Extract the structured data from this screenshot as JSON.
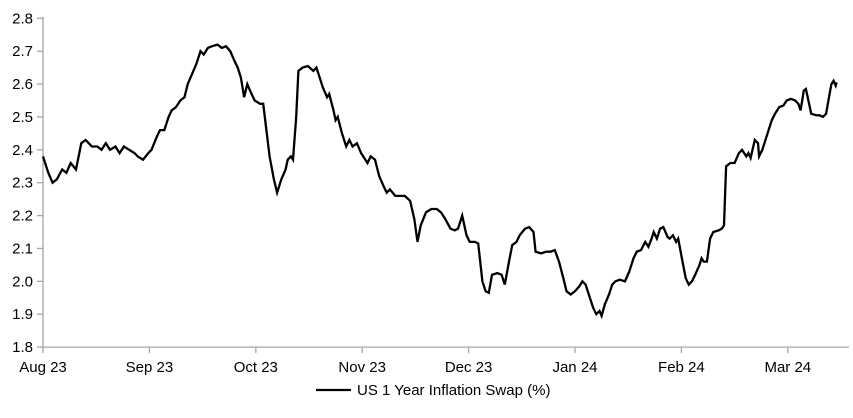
{
  "chart_data": {
    "type": "line",
    "title": "",
    "xlabel": "",
    "ylabel": "",
    "legend_label": "US 1 Year Inflation Swap (%)",
    "legend_position": "bottom-center",
    "grid": false,
    "ylim": [
      1.8,
      2.8
    ],
    "y_ticks": [
      2.8,
      2.7,
      2.6,
      2.5,
      2.4,
      2.3,
      2.2,
      2.1,
      2.0,
      1.9,
      1.8
    ],
    "y_tick_labels": [
      "2.8",
      "2.7",
      "2.6",
      "2.5",
      "2.4",
      "2.3",
      "2.2",
      "2.1",
      "2.0",
      "1.9",
      "1.8"
    ],
    "x_tick_labels": [
      "Aug 23",
      "Sep 23",
      "Oct 23",
      "Nov 23",
      "Dec 23",
      "Jan 24",
      "Feb 24",
      "Mar 24"
    ],
    "x_unit": "months after Aug 2023 tick (0 = Aug 23, 7 = Mar 24)",
    "x_range_months": [
      0,
      7.58
    ],
    "line_color": "#000000",
    "axis_color": "#a6a6a6",
    "background_color": "#ffffff",
    "series": [
      {
        "name": "US 1 Year Inflation Swap (%)",
        "points": [
          [
            0.0,
            2.38
          ],
          [
            0.05,
            2.33
          ],
          [
            0.09,
            2.3
          ],
          [
            0.13,
            2.31
          ],
          [
            0.18,
            2.34
          ],
          [
            0.22,
            2.33
          ],
          [
            0.26,
            2.36
          ],
          [
            0.31,
            2.34
          ],
          [
            0.36,
            2.42
          ],
          [
            0.4,
            2.43
          ],
          [
            0.46,
            2.41
          ],
          [
            0.51,
            2.41
          ],
          [
            0.55,
            2.4
          ],
          [
            0.59,
            2.42
          ],
          [
            0.63,
            2.4
          ],
          [
            0.68,
            2.41
          ],
          [
            0.72,
            2.39
          ],
          [
            0.76,
            2.41
          ],
          [
            0.81,
            2.4
          ],
          [
            0.86,
            2.39
          ],
          [
            0.89,
            2.38
          ],
          [
            0.94,
            2.37
          ],
          [
            0.99,
            2.39
          ],
          [
            1.02,
            2.4
          ],
          [
            1.07,
            2.44
          ],
          [
            1.1,
            2.46
          ],
          [
            1.14,
            2.46
          ],
          [
            1.18,
            2.5
          ],
          [
            1.21,
            2.52
          ],
          [
            1.25,
            2.53
          ],
          [
            1.29,
            2.55
          ],
          [
            1.33,
            2.56
          ],
          [
            1.36,
            2.6
          ],
          [
            1.4,
            2.63
          ],
          [
            1.44,
            2.66
          ],
          [
            1.48,
            2.7
          ],
          [
            1.51,
            2.69
          ],
          [
            1.55,
            2.71
          ],
          [
            1.59,
            2.715
          ],
          [
            1.64,
            2.72
          ],
          [
            1.68,
            2.71
          ],
          [
            1.72,
            2.715
          ],
          [
            1.76,
            2.7
          ],
          [
            1.8,
            2.67
          ],
          [
            1.83,
            2.65
          ],
          [
            1.86,
            2.62
          ],
          [
            1.89,
            2.56
          ],
          [
            1.92,
            2.6
          ],
          [
            1.96,
            2.57
          ],
          [
            1.99,
            2.55
          ],
          [
            2.04,
            2.54
          ],
          [
            2.07,
            2.54
          ],
          [
            2.1,
            2.46
          ],
          [
            2.13,
            2.38
          ],
          [
            2.17,
            2.31
          ],
          [
            2.2,
            2.27
          ],
          [
            2.24,
            2.31
          ],
          [
            2.28,
            2.34
          ],
          [
            2.3,
            2.37
          ],
          [
            2.33,
            2.38
          ],
          [
            2.35,
            2.37
          ],
          [
            2.38,
            2.5
          ],
          [
            2.4,
            2.64
          ],
          [
            2.44,
            2.65
          ],
          [
            2.49,
            2.655
          ],
          [
            2.54,
            2.64
          ],
          [
            2.57,
            2.65
          ],
          [
            2.59,
            2.63
          ],
          [
            2.63,
            2.59
          ],
          [
            2.67,
            2.56
          ],
          [
            2.69,
            2.57
          ],
          [
            2.73,
            2.52
          ],
          [
            2.75,
            2.49
          ],
          [
            2.77,
            2.5
          ],
          [
            2.81,
            2.45
          ],
          [
            2.85,
            2.41
          ],
          [
            2.88,
            2.43
          ],
          [
            2.91,
            2.41
          ],
          [
            2.95,
            2.42
          ],
          [
            2.99,
            2.39
          ],
          [
            3.03,
            2.37
          ],
          [
            3.05,
            2.36
          ],
          [
            3.08,
            2.38
          ],
          [
            3.12,
            2.37
          ],
          [
            3.16,
            2.32
          ],
          [
            3.2,
            2.29
          ],
          [
            3.23,
            2.27
          ],
          [
            3.26,
            2.28
          ],
          [
            3.31,
            2.26
          ],
          [
            3.36,
            2.26
          ],
          [
            3.4,
            2.26
          ],
          [
            3.45,
            2.245
          ],
          [
            3.49,
            2.19
          ],
          [
            3.52,
            2.12
          ],
          [
            3.55,
            2.17
          ],
          [
            3.6,
            2.21
          ],
          [
            3.65,
            2.22
          ],
          [
            3.7,
            2.22
          ],
          [
            3.74,
            2.21
          ],
          [
            3.78,
            2.19
          ],
          [
            3.83,
            2.16
          ],
          [
            3.87,
            2.155
          ],
          [
            3.9,
            2.16
          ],
          [
            3.94,
            2.2
          ],
          [
            3.98,
            2.14
          ],
          [
            4.01,
            2.12
          ],
          [
            4.06,
            2.12
          ],
          [
            4.09,
            2.115
          ],
          [
            4.13,
            2.0
          ],
          [
            4.16,
            1.97
          ],
          [
            4.19,
            1.965
          ],
          [
            4.22,
            2.02
          ],
          [
            4.27,
            2.025
          ],
          [
            4.31,
            2.02
          ],
          [
            4.34,
            1.99
          ],
          [
            4.38,
            2.06
          ],
          [
            4.41,
            2.11
          ],
          [
            4.45,
            2.12
          ],
          [
            4.48,
            2.14
          ],
          [
            4.53,
            2.16
          ],
          [
            4.57,
            2.165
          ],
          [
            4.61,
            2.15
          ],
          [
            4.63,
            2.09
          ],
          [
            4.68,
            2.085
          ],
          [
            4.73,
            2.09
          ],
          [
            4.77,
            2.09
          ],
          [
            4.81,
            2.095
          ],
          [
            4.85,
            2.06
          ],
          [
            4.89,
            2.01
          ],
          [
            4.92,
            1.97
          ],
          [
            4.96,
            1.96
          ],
          [
            5.0,
            1.97
          ],
          [
            5.04,
            1.985
          ],
          [
            5.07,
            2.0
          ],
          [
            5.1,
            1.99
          ],
          [
            5.13,
            1.96
          ],
          [
            5.17,
            1.92
          ],
          [
            5.2,
            1.9
          ],
          [
            5.23,
            1.91
          ],
          [
            5.25,
            1.895
          ],
          [
            5.28,
            1.93
          ],
          [
            5.32,
            1.96
          ],
          [
            5.35,
            1.99
          ],
          [
            5.38,
            2.0
          ],
          [
            5.42,
            2.005
          ],
          [
            5.47,
            2.0
          ],
          [
            5.51,
            2.03
          ],
          [
            5.55,
            2.07
          ],
          [
            5.58,
            2.09
          ],
          [
            5.62,
            2.095
          ],
          [
            5.66,
            2.12
          ],
          [
            5.69,
            2.105
          ],
          [
            5.72,
            2.13
          ],
          [
            5.74,
            2.15
          ],
          [
            5.77,
            2.13
          ],
          [
            5.8,
            2.16
          ],
          [
            5.83,
            2.165
          ],
          [
            5.87,
            2.135
          ],
          [
            5.89,
            2.13
          ],
          [
            5.92,
            2.14
          ],
          [
            5.95,
            2.12
          ],
          [
            5.97,
            2.13
          ],
          [
            6.01,
            2.06
          ],
          [
            6.04,
            2.01
          ],
          [
            6.07,
            1.99
          ],
          [
            6.1,
            2.0
          ],
          [
            6.13,
            2.02
          ],
          [
            6.17,
            2.05
          ],
          [
            6.19,
            2.07
          ],
          [
            6.21,
            2.06
          ],
          [
            6.24,
            2.06
          ],
          [
            6.27,
            2.13
          ],
          [
            6.3,
            2.15
          ],
          [
            6.35,
            2.155
          ],
          [
            6.38,
            2.16
          ],
          [
            6.4,
            2.17
          ],
          [
            6.42,
            2.35
          ],
          [
            6.46,
            2.36
          ],
          [
            6.5,
            2.36
          ],
          [
            6.54,
            2.39
          ],
          [
            6.57,
            2.4
          ],
          [
            6.61,
            2.38
          ],
          [
            6.63,
            2.39
          ],
          [
            6.65,
            2.375
          ],
          [
            6.69,
            2.43
          ],
          [
            6.72,
            2.42
          ],
          [
            6.73,
            2.38
          ],
          [
            6.76,
            2.4
          ],
          [
            6.8,
            2.44
          ],
          [
            6.82,
            2.46
          ],
          [
            6.85,
            2.49
          ],
          [
            6.88,
            2.51
          ],
          [
            6.92,
            2.53
          ],
          [
            6.96,
            2.535
          ],
          [
            6.99,
            2.55
          ],
          [
            7.03,
            2.555
          ],
          [
            7.07,
            2.55
          ],
          [
            7.1,
            2.54
          ],
          [
            7.12,
            2.52
          ],
          [
            7.15,
            2.58
          ],
          [
            7.17,
            2.585
          ],
          [
            7.2,
            2.54
          ],
          [
            7.22,
            2.51
          ],
          [
            7.27,
            2.505
          ],
          [
            7.3,
            2.505
          ],
          [
            7.33,
            2.5
          ],
          [
            7.36,
            2.51
          ],
          [
            7.39,
            2.565
          ],
          [
            7.41,
            2.6
          ],
          [
            7.43,
            2.61
          ],
          [
            7.45,
            2.595
          ],
          [
            7.46,
            2.605
          ]
        ]
      }
    ]
  }
}
